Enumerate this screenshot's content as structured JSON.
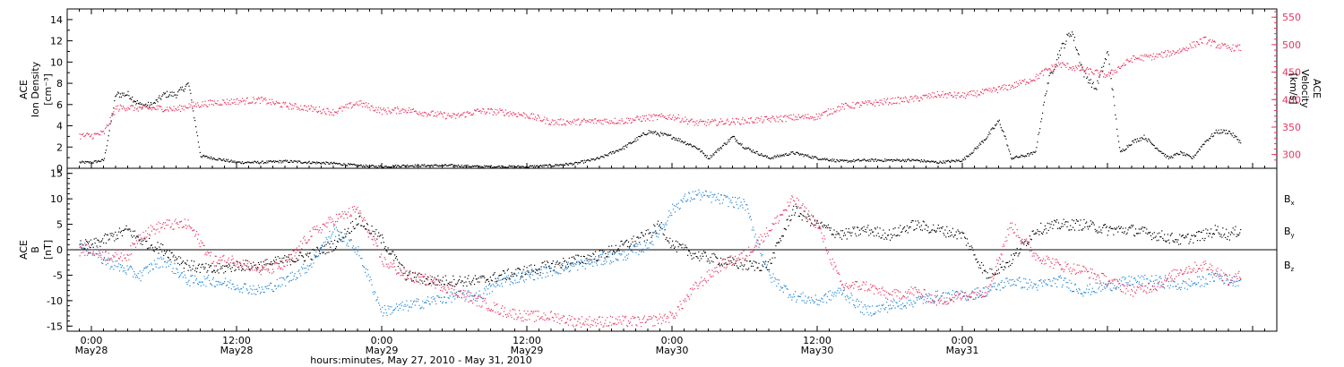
{
  "colors": {
    "black": "#000000",
    "red": "#e8345f",
    "blue": "#1f86d8",
    "background": "#ffffff"
  },
  "top_panel": {
    "left_ylabel": [
      "ACE",
      "Ion Density",
      "[cm⁻³]"
    ],
    "right_ylabel": [
      "ACE",
      "Velocity",
      "[km/s]"
    ]
  },
  "bottom_panel": {
    "left_ylabel": [
      "ACE",
      "B",
      "[nT]"
    ],
    "legend": [
      "B",
      "B",
      "B"
    ],
    "legend_subscripts": [
      "x",
      "y",
      "z"
    ]
  },
  "x_axis": {
    "title": "hours:minutes, May 27, 2010 - May 31, 2010",
    "tick_times": [
      "0:00",
      "12:00",
      "0:00",
      "12:00",
      "0:00",
      "12:00",
      "0:00"
    ],
    "tick_dates": [
      "May28",
      "May28",
      "May29",
      "May29",
      "May30",
      "May30",
      "May31"
    ]
  },
  "chart_data": [
    {
      "type": "scatter",
      "xlabel": "hours:minutes, May 27, 2010 - May 31, 2010",
      "xlim": [
        -2,
        98
      ],
      "x_unit": "hours from 2010-05-28 00:00 UT",
      "ylabel": "ACE Ion Density [cm⁻³]",
      "ylim": [
        0,
        15
      ],
      "y_ticks": [
        0,
        2,
        4,
        6,
        8,
        10,
        12,
        14
      ],
      "y2label": "ACE Velocity [km/s]",
      "y2lim": [
        275,
        565
      ],
      "y2_ticks": [
        300,
        350,
        400,
        450,
        500,
        550
      ],
      "series": [
        {
          "axis": "left",
          "color": "#000000",
          "x": [
            -1,
            0,
            1,
            2,
            3,
            4,
            5,
            6,
            7,
            8,
            9,
            10,
            12,
            14,
            16,
            18,
            20,
            22,
            24,
            26,
            28,
            30,
            32,
            34,
            36,
            38,
            40,
            42,
            44,
            46,
            48,
            50,
            51,
            52,
            53,
            54,
            56,
            58,
            60,
            62,
            64,
            66,
            68,
            70,
            72,
            73,
            74,
            75,
            75.5,
            76,
            77,
            78,
            79,
            80,
            81,
            82,
            83,
            84,
            85,
            86,
            87,
            88,
            89,
            90,
            91,
            92,
            93,
            94,
            95
          ],
          "values": [
            0.6,
            0.6,
            0.8,
            7,
            7,
            6,
            6,
            7,
            7,
            8,
            1.2,
            1.0,
            0.6,
            0.6,
            0.7,
            0.6,
            0.5,
            0.3,
            0.2,
            0.3,
            0.3,
            0.3,
            0.2,
            0.2,
            0.2,
            0.3,
            0.5,
            1.0,
            2,
            3.5,
            3,
            2,
            1,
            2.0,
            3,
            2,
            1,
            1.5,
            1,
            0.7,
            0.8,
            0.8,
            0.8,
            0.6,
            0.8,
            1.8,
            3,
            4.5,
            3,
            1,
            1.2,
            1.5,
            8,
            11,
            13,
            9,
            7.5,
            11,
            1.5,
            2.5,
            3,
            2,
            1,
            1.5,
            1,
            2.5,
            3.5,
            3.5,
            2.5
          ]
        },
        {
          "axis": "right",
          "color": "#e8345f",
          "x": [
            -1,
            0,
            1,
            2,
            3,
            4,
            5,
            6,
            7,
            8,
            9,
            10,
            12,
            14,
            16,
            18,
            20,
            22,
            24,
            26,
            28,
            30,
            32,
            34,
            36,
            38,
            40,
            42,
            44,
            46,
            48,
            50,
            52,
            54,
            56,
            58,
            60,
            62,
            64,
            66,
            68,
            70,
            72,
            74,
            76,
            78,
            79,
            80,
            82,
            84,
            86,
            88,
            90,
            92,
            93,
            94,
            95
          ],
          "values": [
            335,
            335,
            340,
            385,
            387,
            385,
            385,
            385,
            383,
            390,
            392,
            395,
            398,
            400,
            390,
            385,
            378,
            395,
            380,
            382,
            375,
            370,
            380,
            378,
            372,
            360,
            360,
            362,
            362,
            368,
            370,
            358,
            360,
            362,
            365,
            368,
            370,
            388,
            393,
            398,
            402,
            410,
            408,
            415,
            425,
            440,
            455,
            465,
            455,
            445,
            475,
            480,
            490,
            510,
            500,
            495,
            495
          ]
        }
      ]
    },
    {
      "type": "scatter",
      "xlabel": "hours:minutes, May 27, 2010 - May 31, 2010",
      "xlim": [
        -2,
        98
      ],
      "x_unit": "hours from 2010-05-28 00:00 UT",
      "ylabel": "ACE B [nT]",
      "ylim": [
        -16,
        16
      ],
      "y_ticks": [
        -15,
        -10,
        -5,
        0,
        5,
        10,
        15
      ],
      "zero_line": true,
      "series": [
        {
          "name": "Bx",
          "color": "#000000",
          "x": [
            -1,
            0,
            1,
            2,
            3,
            4,
            5,
            6,
            8,
            10,
            12,
            14,
            16,
            18,
            20,
            22,
            24,
            26,
            28,
            30,
            32,
            34,
            36,
            38,
            40,
            42,
            44,
            46,
            47,
            48,
            50,
            52,
            54,
            56,
            58,
            60,
            62,
            64,
            66,
            68,
            70,
            72,
            74,
            76,
            78,
            80,
            82,
            84,
            86,
            88,
            90,
            92,
            93,
            94,
            95
          ],
          "values": [
            1,
            1,
            2,
            3,
            4,
            2,
            1,
            0,
            -3,
            -4,
            -3,
            -3,
            -2,
            -1,
            1,
            6,
            2,
            -5,
            -6,
            -6,
            -6,
            -5,
            -4,
            -3,
            -2,
            -1,
            1,
            3,
            5,
            1,
            -1,
            -2,
            -3,
            -3,
            8,
            5,
            3,
            4,
            3,
            5,
            4,
            3,
            -5,
            -2,
            4,
            5,
            5,
            4,
            4,
            3,
            2,
            3,
            4,
            3,
            4
          ]
        },
        {
          "name": "By",
          "color": "#1f86d8",
          "x": [
            -1,
            0,
            1,
            2,
            3,
            4,
            5,
            6,
            8,
            10,
            12,
            14,
            16,
            18,
            20,
            22,
            24,
            26,
            28,
            30,
            32,
            34,
            36,
            38,
            40,
            42,
            44,
            46,
            47,
            48,
            49,
            50,
            52,
            54,
            56,
            58,
            60,
            62,
            64,
            66,
            68,
            70,
            72,
            74,
            76,
            78,
            80,
            82,
            84,
            86,
            88,
            90,
            92,
            93,
            94,
            95
          ],
          "values": [
            1,
            0,
            -2,
            -3,
            -4,
            -5,
            -3,
            -2,
            -6,
            -6,
            -7,
            -8,
            -6,
            -3,
            4,
            0,
            -12,
            -11,
            -10,
            -9,
            -9,
            -6,
            -5,
            -4,
            -3,
            -2,
            -1,
            1,
            4,
            8,
            10,
            11,
            10,
            9,
            -5,
            -9,
            -10,
            -8,
            -12,
            -11,
            -10,
            -9,
            -9,
            -8,
            -6,
            -7,
            -6,
            -8,
            -7,
            -6,
            -6,
            -7,
            -6,
            -5,
            -6,
            -6
          ]
        },
        {
          "name": "Bz",
          "color": "#e8345f",
          "x": [
            -1,
            0,
            1,
            2,
            3,
            4,
            5,
            6,
            8,
            10,
            12,
            14,
            16,
            18,
            20,
            22,
            24,
            26,
            28,
            30,
            32,
            34,
            36,
            38,
            40,
            42,
            44,
            46,
            48,
            50,
            52,
            54,
            56,
            58,
            60,
            62,
            64,
            66,
            68,
            70,
            72,
            74,
            76,
            78,
            80,
            82,
            84,
            86,
            88,
            90,
            92,
            93,
            94,
            95
          ],
          "values": [
            0,
            0,
            -1,
            -1,
            -1,
            3,
            4,
            5,
            5,
            -2,
            -2,
            -4,
            -3,
            3,
            6,
            8,
            -2,
            -5,
            -6,
            -8,
            -10,
            -12,
            -13,
            -13,
            -14,
            -14,
            -14,
            -14,
            -13,
            -7,
            -3,
            -1,
            4,
            10,
            5,
            -7,
            -7,
            -9,
            -8,
            -10,
            -9,
            -8,
            5,
            -1,
            -3,
            -4,
            -6,
            -8,
            -7,
            -4,
            -3,
            -4,
            -6,
            -5
          ]
        }
      ]
    }
  ]
}
